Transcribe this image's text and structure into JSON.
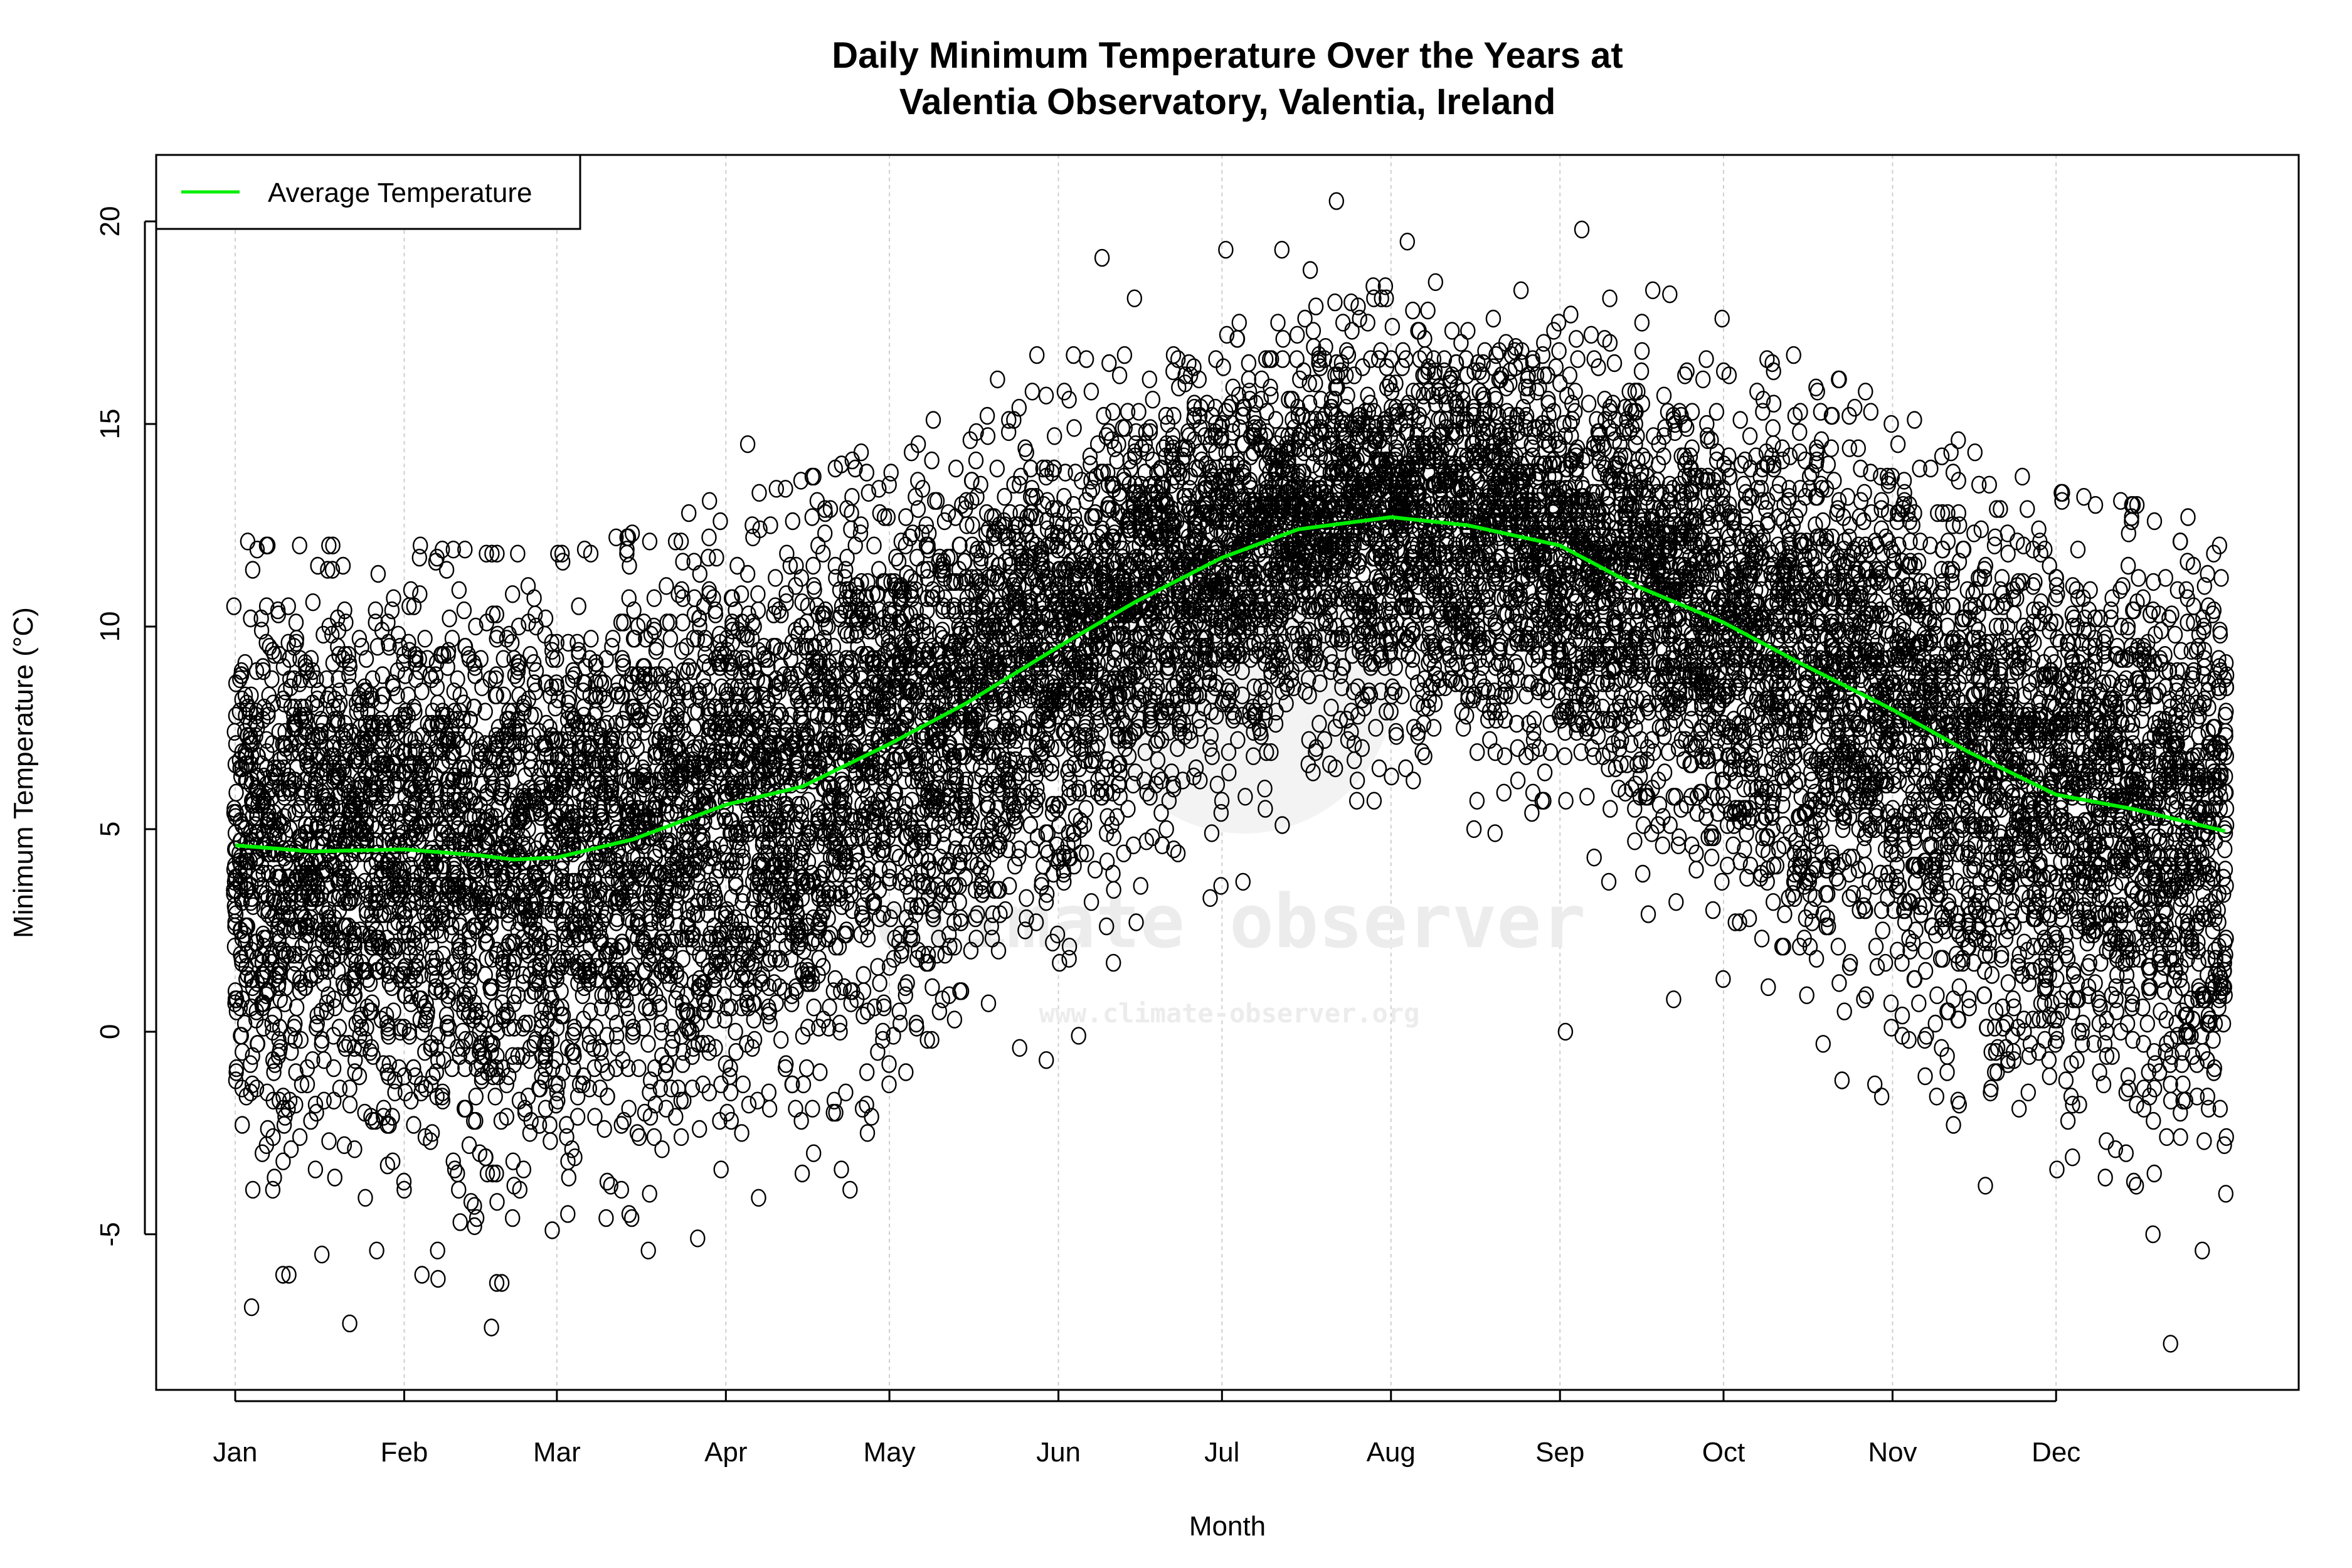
{
  "chart_data": {
    "type": "scatter",
    "title": [
      "Daily Minimum Temperature Over the Years at",
      "Valentia Observatory, Valentia, Ireland"
    ],
    "xlabel": "Month",
    "ylabel": "Minimum Temperature (°C)",
    "xlim_day_of_year": [
      -13.5,
      379.5
    ],
    "ylim": [
      -8.84,
      21.64
    ],
    "x_ticks": [
      {
        "label": "Jan",
        "day": 1
      },
      {
        "label": "Feb",
        "day": 32
      },
      {
        "label": "Mar",
        "day": 60
      },
      {
        "label": "Apr",
        "day": 91
      },
      {
        "label": "May",
        "day": 121
      },
      {
        "label": "Jun",
        "day": 152
      },
      {
        "label": "Jul",
        "day": 182
      },
      {
        "label": "Aug",
        "day": 213
      },
      {
        "label": "Sep",
        "day": 244
      },
      {
        "label": "Oct",
        "day": 274
      },
      {
        "label": "Nov",
        "day": 305
      },
      {
        "label": "Dec",
        "day": 335
      }
    ],
    "y_ticks": [
      -5,
      0,
      5,
      10,
      15,
      20
    ],
    "grid": "vertical dashed at month ticks",
    "legend": {
      "placement": "top-left",
      "entries": [
        {
          "label": "Average Temperature",
          "color": "#00ee00"
        }
      ]
    },
    "average_series": {
      "name": "Average Temperature",
      "color": "#00ee00",
      "day": [
        1,
        15,
        32,
        46,
        52,
        60,
        74,
        91,
        105,
        121,
        135,
        152,
        166,
        182,
        196,
        213,
        227,
        244,
        258,
        274,
        288,
        305,
        319,
        335,
        349,
        366
      ],
      "temp": [
        4.6,
        4.45,
        4.5,
        4.35,
        4.25,
        4.3,
        4.75,
        5.6,
        6.05,
        7.1,
        8.1,
        9.5,
        10.6,
        11.7,
        12.4,
        12.7,
        12.5,
        12.0,
        11.0,
        10.1,
        9.1,
        7.95,
        6.9,
        5.85,
        5.5,
        4.95
      ]
    },
    "scatter_series": {
      "marker": "open circle",
      "color": "#000000",
      "notable_points": [
        {
          "day": 203,
          "temp": 20.5
        },
        {
          "day": 248,
          "temp": 19.8
        },
        {
          "day": 216,
          "temp": 19.5
        },
        {
          "day": 160,
          "temp": 19.1
        },
        {
          "day": 245,
          "temp": 0.0
        },
        {
          "day": 356,
          "temp": -7.7
        },
        {
          "day": 48,
          "temp": -7.3
        },
        {
          "day": 22,
          "temp": -7.2
        },
        {
          "day": 4,
          "temp": -6.8
        },
        {
          "day": 95,
          "temp": 14.5
        },
        {
          "day": 88,
          "temp": 13.1
        }
      ]
    }
  },
  "watermark": {
    "name": "climate observer",
    "url": "www.climate-observer.org"
  }
}
